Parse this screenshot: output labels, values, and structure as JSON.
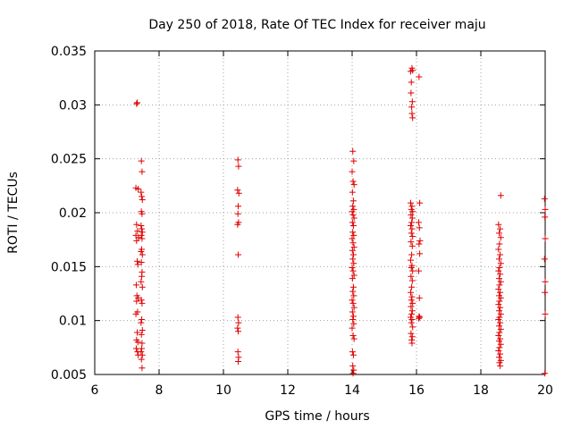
{
  "chart_data": {
    "type": "scatter",
    "title": "Day 250 of 2018, Rate Of TEC Index for receiver maju",
    "xlabel": "GPS time / hours",
    "ylabel": "ROTI / TECUs",
    "xlim": [
      6,
      20
    ],
    "ylim": [
      0.005,
      0.035
    ],
    "xticks": [
      6,
      8,
      10,
      12,
      14,
      16,
      18,
      20
    ],
    "yticks": [
      0.005,
      0.01,
      0.015,
      0.02,
      0.025,
      0.03,
      0.035
    ],
    "xtick_labels": [
      "6",
      "8",
      "10",
      "12",
      "14",
      "16",
      "18",
      "20"
    ],
    "ytick_labels": [
      "0.005",
      "0.01",
      "0.015",
      "0.02",
      "0.025",
      "0.03",
      "0.035"
    ],
    "grid": true,
    "marker": "+",
    "marker_color": "#e00000",
    "series": [
      {
        "name": "ROTI",
        "points": [
          [
            7.3,
            0.0301
          ],
          [
            7.32,
            0.0302
          ],
          [
            7.28,
            0.0223
          ],
          [
            7.35,
            0.0222
          ],
          [
            7.3,
            0.0189
          ],
          [
            7.33,
            0.0183
          ],
          [
            7.28,
            0.0179
          ],
          [
            7.36,
            0.0177
          ],
          [
            7.3,
            0.0174
          ],
          [
            7.32,
            0.0155
          ],
          [
            7.34,
            0.0152
          ],
          [
            7.29,
            0.0133
          ],
          [
            7.31,
            0.0123
          ],
          [
            7.35,
            0.0121
          ],
          [
            7.3,
            0.0118
          ],
          [
            7.33,
            0.0108
          ],
          [
            7.28,
            0.0106
          ],
          [
            7.32,
            0.0089
          ],
          [
            7.3,
            0.0082
          ],
          [
            7.34,
            0.008
          ],
          [
            7.29,
            0.0074
          ],
          [
            7.33,
            0.0071
          ],
          [
            7.35,
            0.0068
          ],
          [
            7.45,
            0.0248
          ],
          [
            7.47,
            0.0238
          ],
          [
            7.44,
            0.0219
          ],
          [
            7.46,
            0.0215
          ],
          [
            7.48,
            0.0212
          ],
          [
            7.45,
            0.0201
          ],
          [
            7.47,
            0.0199
          ],
          [
            7.44,
            0.0188
          ],
          [
            7.46,
            0.0185
          ],
          [
            7.48,
            0.0182
          ],
          [
            7.45,
            0.0179
          ],
          [
            7.47,
            0.0176
          ],
          [
            7.46,
            0.0166
          ],
          [
            7.44,
            0.0164
          ],
          [
            7.48,
            0.0161
          ],
          [
            7.45,
            0.0154
          ],
          [
            7.47,
            0.0145
          ],
          [
            7.46,
            0.0141
          ],
          [
            7.44,
            0.0136
          ],
          [
            7.48,
            0.0131
          ],
          [
            7.45,
            0.0119
          ],
          [
            7.47,
            0.0116
          ],
          [
            7.46,
            0.0101
          ],
          [
            7.44,
            0.0098
          ],
          [
            7.48,
            0.0091
          ],
          [
            7.45,
            0.0087
          ],
          [
            7.47,
            0.0079
          ],
          [
            7.46,
            0.0074
          ],
          [
            7.44,
            0.0071
          ],
          [
            7.48,
            0.0068
          ],
          [
            7.45,
            0.0064
          ],
          [
            7.47,
            0.0056
          ],
          [
            10.45,
            0.0249
          ],
          [
            10.47,
            0.0243
          ],
          [
            10.44,
            0.0221
          ],
          [
            10.48,
            0.0218
          ],
          [
            10.46,
            0.0206
          ],
          [
            10.45,
            0.0199
          ],
          [
            10.47,
            0.0191
          ],
          [
            10.44,
            0.0189
          ],
          [
            10.46,
            0.0161
          ],
          [
            10.45,
            0.0103
          ],
          [
            10.47,
            0.0098
          ],
          [
            10.44,
            0.0093
          ],
          [
            10.46,
            0.009
          ],
          [
            10.45,
            0.0071
          ],
          [
            10.47,
            0.0066
          ],
          [
            10.46,
            0.0062
          ],
          [
            14.02,
            0.0257
          ],
          [
            14.05,
            0.0248
          ],
          [
            14.0,
            0.0238
          ],
          [
            14.03,
            0.0229
          ],
          [
            14.06,
            0.0226
          ],
          [
            14.01,
            0.0219
          ],
          [
            14.04,
            0.0211
          ],
          [
            14.02,
            0.0206
          ],
          [
            14.05,
            0.0203
          ],
          [
            14.0,
            0.0201
          ],
          [
            14.03,
            0.0198
          ],
          [
            14.06,
            0.0195
          ],
          [
            14.01,
            0.0191
          ],
          [
            14.04,
            0.0188
          ],
          [
            14.02,
            0.0182
          ],
          [
            14.05,
            0.0179
          ],
          [
            14.0,
            0.0176
          ],
          [
            14.03,
            0.0172
          ],
          [
            14.06,
            0.0168
          ],
          [
            14.01,
            0.0165
          ],
          [
            14.04,
            0.0161
          ],
          [
            14.02,
            0.0157
          ],
          [
            14.05,
            0.0153
          ],
          [
            14.0,
            0.0149
          ],
          [
            14.03,
            0.0146
          ],
          [
            14.06,
            0.0142
          ],
          [
            14.01,
            0.0139
          ],
          [
            14.04,
            0.0131
          ],
          [
            14.02,
            0.0127
          ],
          [
            14.05,
            0.0123
          ],
          [
            14.0,
            0.0119
          ],
          [
            14.03,
            0.0116
          ],
          [
            14.06,
            0.0112
          ],
          [
            14.01,
            0.0108
          ],
          [
            14.04,
            0.0104
          ],
          [
            14.02,
            0.0101
          ],
          [
            14.05,
            0.0097
          ],
          [
            14.0,
            0.0093
          ],
          [
            14.03,
            0.0086
          ],
          [
            14.06,
            0.0083
          ],
          [
            14.01,
            0.0071
          ],
          [
            14.04,
            0.0068
          ],
          [
            14.02,
            0.0058
          ],
          [
            14.05,
            0.0054
          ],
          [
            14.03,
            0.0051
          ],
          [
            15.82,
            0.0331
          ],
          [
            15.86,
            0.0334
          ],
          [
            15.88,
            0.0332
          ],
          [
            15.84,
            0.0321
          ],
          [
            15.83,
            0.0311
          ],
          [
            15.87,
            0.0303
          ],
          [
            15.85,
            0.0298
          ],
          [
            15.86,
            0.0292
          ],
          [
            15.88,
            0.0288
          ],
          [
            15.82,
            0.0209
          ],
          [
            15.86,
            0.0206
          ],
          [
            15.84,
            0.0203
          ],
          [
            15.88,
            0.0201
          ],
          [
            15.83,
            0.0198
          ],
          [
            15.87,
            0.0195
          ],
          [
            15.85,
            0.0191
          ],
          [
            15.82,
            0.0188
          ],
          [
            15.86,
            0.0185
          ],
          [
            15.84,
            0.0181
          ],
          [
            15.88,
            0.0178
          ],
          [
            15.83,
            0.0173
          ],
          [
            15.87,
            0.0169
          ],
          [
            15.85,
            0.0161
          ],
          [
            15.82,
            0.0156
          ],
          [
            15.86,
            0.0151
          ],
          [
            15.84,
            0.0149
          ],
          [
            15.88,
            0.0146
          ],
          [
            15.83,
            0.0141
          ],
          [
            15.87,
            0.0137
          ],
          [
            15.85,
            0.0131
          ],
          [
            15.82,
            0.0126
          ],
          [
            15.86,
            0.0122
          ],
          [
            15.84,
            0.0119
          ],
          [
            15.88,
            0.0116
          ],
          [
            15.83,
            0.0113
          ],
          [
            15.87,
            0.0109
          ],
          [
            15.85,
            0.0106
          ],
          [
            15.82,
            0.0103
          ],
          [
            15.86,
            0.0101
          ],
          [
            15.84,
            0.0098
          ],
          [
            15.88,
            0.0094
          ],
          [
            15.83,
            0.0088
          ],
          [
            15.87,
            0.0085
          ],
          [
            15.85,
            0.0082
          ],
          [
            15.86,
            0.0079
          ],
          [
            16.08,
            0.0326
          ],
          [
            16.1,
            0.0209
          ],
          [
            16.07,
            0.0191
          ],
          [
            16.09,
            0.0186
          ],
          [
            16.11,
            0.0174
          ],
          [
            16.08,
            0.0171
          ],
          [
            16.1,
            0.0162
          ],
          [
            16.07,
            0.0146
          ],
          [
            16.09,
            0.0121
          ],
          [
            16.08,
            0.0104
          ],
          [
            16.1,
            0.0103
          ],
          [
            16.07,
            0.0102
          ],
          [
            18.55,
            0.0189
          ],
          [
            18.6,
            0.0185
          ],
          [
            18.57,
            0.0181
          ],
          [
            18.62,
            0.0177
          ],
          [
            18.58,
            0.0171
          ],
          [
            18.55,
            0.0166
          ],
          [
            18.6,
            0.0161
          ],
          [
            18.57,
            0.0157
          ],
          [
            18.62,
            0.0153
          ],
          [
            18.58,
            0.0149
          ],
          [
            18.55,
            0.0146
          ],
          [
            18.6,
            0.0143
          ],
          [
            18.57,
            0.0139
          ],
          [
            18.62,
            0.0136
          ],
          [
            18.58,
            0.0133
          ],
          [
            18.55,
            0.0129
          ],
          [
            18.6,
            0.0126
          ],
          [
            18.57,
            0.0123
          ],
          [
            18.62,
            0.0121
          ],
          [
            18.58,
            0.0118
          ],
          [
            18.55,
            0.0115
          ],
          [
            18.6,
            0.0112
          ],
          [
            18.57,
            0.0109
          ],
          [
            18.62,
            0.0106
          ],
          [
            18.58,
            0.0103
          ],
          [
            18.55,
            0.0101
          ],
          [
            18.6,
            0.0098
          ],
          [
            18.57,
            0.0095
          ],
          [
            18.62,
            0.0092
          ],
          [
            18.58,
            0.0089
          ],
          [
            18.55,
            0.0086
          ],
          [
            18.6,
            0.0083
          ],
          [
            18.57,
            0.0081
          ],
          [
            18.62,
            0.0078
          ],
          [
            18.58,
            0.0075
          ],
          [
            18.55,
            0.0072
          ],
          [
            18.6,
            0.0069
          ],
          [
            18.57,
            0.0066
          ],
          [
            18.62,
            0.0063
          ],
          [
            18.58,
            0.0061
          ],
          [
            18.6,
            0.0058
          ],
          [
            18.62,
            0.0216
          ],
          [
            19.98,
            0.0213
          ],
          [
            20.0,
            0.0203
          ],
          [
            19.99,
            0.0196
          ],
          [
            20.0,
            0.0176
          ],
          [
            19.98,
            0.0157
          ],
          [
            20.0,
            0.0136
          ],
          [
            19.99,
            0.0126
          ],
          [
            20.0,
            0.0106
          ],
          [
            19.99,
            0.0051
          ]
        ]
      }
    ]
  }
}
